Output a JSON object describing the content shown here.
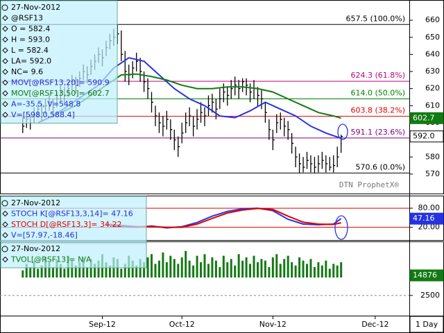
{
  "chart_data": [
    {
      "type": "ohlc",
      "info": [
        {
          "text": "27-Nov-2012",
          "color": "#000000"
        },
        {
          "text": "@RSF13",
          "color": "#000000"
        },
        {
          "text": "O = 582.4",
          "color": "#000000"
        },
        {
          "text": "H = 593.0",
          "color": "#000000"
        },
        {
          "text": "L = 582.4",
          "color": "#000000"
        },
        {
          "text": "LA= 592.0",
          "color": "#000000"
        },
        {
          "text": "NC= 9.6",
          "color": "#000000"
        },
        {
          "text": "MOV[@RSF13,20]= 590.9",
          "color": "#1f2fd8"
        },
        {
          "text": "MOV[@RSF13,50]= 602.7",
          "color": "#0a7a0a"
        },
        {
          "text": "A=-35.5, V=548.8",
          "color": "#1f2fd8"
        },
        {
          "text": "V=[598.0,588.4]",
          "color": "#1f2fd8"
        }
      ],
      "watermark": "DTN ProphetX®",
      "xlim": [
        -6,
        102
      ],
      "ylim": [
        559,
        671
      ],
      "yticks": [
        570,
        580,
        590,
        600,
        610,
        620,
        630,
        640,
        650,
        660
      ],
      "color": "#000000",
      "high": [
        603,
        606,
        605,
        609,
        612,
        611,
        614,
        616,
        614,
        618,
        622,
        621,
        624,
        628,
        627,
        630,
        634,
        633,
        637,
        640,
        644,
        643,
        648,
        652,
        655,
        657.5,
        654,
        642,
        634,
        636,
        641,
        638,
        630,
        626,
        618,
        610,
        606,
        604,
        607,
        602,
        596,
        592,
        600,
        606,
        609,
        604,
        608,
        612,
        609,
        616,
        617,
        614,
        620,
        623,
        621,
        625,
        627,
        625,
        626,
        626,
        623,
        625,
        621,
        619,
        612,
        602,
        596,
        605,
        606,
        603,
        601,
        594,
        586,
        582,
        580,
        583,
        581,
        580,
        581,
        583,
        581,
        580,
        581,
        586,
        593
      ],
      "low": [
        594,
        597,
        596,
        600,
        603,
        601,
        605,
        607,
        604,
        609,
        613,
        611,
        615,
        619,
        617,
        621,
        625,
        623,
        628,
        631,
        635,
        633,
        639,
        643,
        645,
        646,
        636,
        624,
        622,
        626,
        630,
        624,
        618,
        614,
        606,
        598,
        594,
        592,
        596,
        590,
        584,
        580,
        588,
        594,
        598,
        592,
        596,
        600,
        598,
        604,
        606,
        602,
        608,
        612,
        610,
        614,
        616,
        614,
        618,
        616,
        612,
        614,
        610,
        608,
        600,
        590,
        584,
        594,
        596,
        592,
        590,
        582,
        574,
        570.6,
        571,
        573,
        571,
        570.8,
        571,
        573,
        571,
        572,
        571,
        574,
        582.4
      ],
      "close": [
        598,
        602,
        600,
        605,
        608,
        606,
        610,
        612,
        609,
        614,
        618,
        616,
        620,
        624,
        622,
        626,
        630,
        628,
        633,
        636,
        640,
        638,
        644,
        648,
        650,
        652,
        640,
        630,
        628,
        632,
        636,
        630,
        624,
        620,
        612,
        604,
        600,
        598,
        602,
        596,
        590,
        586,
        594,
        600,
        604,
        598,
        602,
        606,
        604,
        610,
        612,
        608,
        614,
        618,
        616,
        620,
        622,
        620,
        624,
        622,
        618,
        620,
        616,
        614,
        606,
        596,
        590,
        600,
        602,
        598,
        596,
        588,
        580,
        576,
        574,
        578,
        576,
        574,
        576,
        578,
        576,
        574,
        575,
        580,
        592
      ],
      "series": [
        {
          "name": "MOV[@RSF13,20]",
          "color": "#2633e0",
          "x": [
            4,
            8,
            12,
            16,
            20,
            24,
            28,
            32,
            36,
            40,
            44,
            48,
            52,
            56,
            60,
            64,
            68,
            72,
            76,
            80,
            84
          ],
          "values": [
            600,
            604,
            610,
            616,
            622,
            632,
            638,
            636,
            628,
            620,
            614,
            610,
            604,
            603,
            607,
            612,
            608,
            604,
            598,
            594,
            590.9
          ]
        },
        {
          "name": "MOV[@RSF13,50]",
          "color": "#127a12",
          "x": [
            10,
            14,
            18,
            22,
            26,
            30,
            34,
            38,
            42,
            46,
            50,
            54,
            58,
            62,
            66,
            70,
            74,
            78,
            82,
            84
          ],
          "values": [
            606,
            610,
            616,
            622,
            628,
            628.5,
            627,
            625,
            622,
            620,
            620,
            621,
            621,
            620,
            618,
            614,
            610,
            606,
            604,
            602.7
          ]
        }
      ],
      "levels": [
        {
          "value": 657.5,
          "label": "657.5 (100.0%)",
          "color": "#000000"
        },
        {
          "value": 624.3,
          "label": "624.3 (61.8%)",
          "color": "#c0007f"
        },
        {
          "value": 614.0,
          "label": "614.0 (50.0%)",
          "color": "#008000"
        },
        {
          "value": 603.8,
          "label": "603.8 (38.2%)",
          "color": "#e00000"
        },
        {
          "value": 591.1,
          "label": "591.1 (23.6%)",
          "color": "#800080"
        },
        {
          "value": 570.6,
          "label": "570.6 (0.0%)",
          "color": "#000000"
        }
      ],
      "tags": [
        {
          "value": 602.7,
          "label": "602.7",
          "color": "#127a12"
        },
        {
          "value": 592.0,
          "label": "592.0",
          "color": "#000000"
        }
      ]
    },
    {
      "type": "line",
      "info": [
        {
          "text": "27-Nov-2012",
          "color": "#000000"
        },
        {
          "text": "STOCH K[@RSF13,3,14]= 47.16",
          "color": "#1f2fd8"
        },
        {
          "text": "STOCH D[@RSF13,3]= 34.22",
          "color": "#e00000"
        },
        {
          "text": "V=[57.97,-18.46]",
          "color": "#1f2fd8"
        }
      ],
      "xlim": [
        -6,
        102
      ],
      "ylim": [
        -20,
        115
      ],
      "yticks": [
        {
          "value": 80,
          "label": "80.00"
        },
        {
          "value": 20,
          "label": "20.00"
        }
      ],
      "series": [
        {
          "name": "STOCH K",
          "color": "#2633e0",
          "x": [
            22,
            26,
            30,
            34,
            38,
            42,
            46,
            50,
            54,
            58,
            62,
            66,
            70,
            74,
            78,
            82,
            84
          ],
          "values": [
            28,
            22,
            20,
            24,
            18,
            22,
            35,
            55,
            70,
            78,
            80,
            72,
            45,
            30,
            28,
            30,
            47.16
          ]
        },
        {
          "name": "STOCH D",
          "color": "#e00000",
          "x": [
            22,
            26,
            30,
            34,
            38,
            42,
            46,
            50,
            54,
            58,
            62,
            66,
            70,
            74,
            78,
            82,
            84
          ],
          "values": [
            30,
            26,
            22,
            22,
            20,
            20,
            30,
            48,
            65,
            74,
            79,
            76,
            55,
            36,
            30,
            29,
            34.22
          ]
        }
      ],
      "tags": [
        {
          "value": 47.16,
          "label": "47.16",
          "color": "#2633e0"
        }
      ]
    },
    {
      "type": "bar",
      "info": [
        {
          "text": "27-Nov-2012",
          "color": "#000000"
        },
        {
          "text": "TVOL[@RSF13]= N/A",
          "color": "#0a7a0a"
        }
      ],
      "xlim": [
        -6,
        102
      ],
      "ylim": [
        -10000,
        35000
      ],
      "yticks": [
        2500
      ],
      "color": "#127a12",
      "values": [
        18000,
        22000,
        20000,
        24000,
        19000,
        21000,
        26000,
        23000,
        20000,
        25000,
        22000,
        19000,
        27000,
        24000,
        21000,
        23000,
        26000,
        20000,
        25000,
        22000,
        24000,
        28000,
        23000,
        21000,
        26000,
        25000,
        19000,
        22000,
        27000,
        24000,
        21000,
        25000,
        23000,
        26000,
        28000,
        22000,
        24000,
        29000,
        23000,
        27000,
        25000,
        22000,
        26000,
        30000,
        24000,
        21000,
        27000,
        23000,
        28000,
        22000,
        26000,
        24000,
        20000,
        27000,
        23000,
        25000,
        21000,
        28000,
        24000,
        26000,
        22000,
        27000,
        23000,
        25000,
        24000,
        20000,
        26000,
        28000,
        22000,
        25000,
        27000,
        23000,
        21000,
        26000,
        24000,
        22000,
        25000,
        20000,
        23000,
        21000,
        24000,
        19000,
        22000,
        21000,
        23000
      ],
      "tags": [
        {
          "value": 14876,
          "label": "14876",
          "color": "#127a12"
        }
      ],
      "xticks": [
        {
          "value": 21,
          "label": "Sep-12"
        },
        {
          "value": 42,
          "label": "Oct-12"
        },
        {
          "value": 66,
          "label": "Nov-12"
        },
        {
          "value": 93,
          "label": "Dec-12"
        }
      ],
      "interval": "1 Day"
    }
  ]
}
